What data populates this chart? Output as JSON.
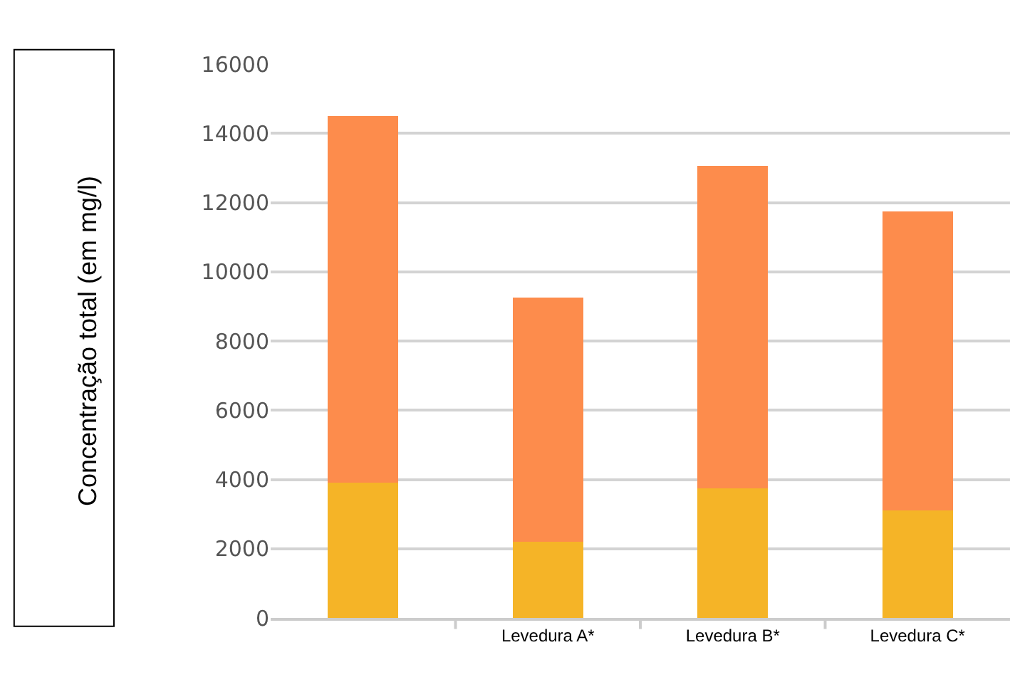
{
  "chart_data": {
    "type": "bar",
    "stacked": true,
    "ylabel": "Concentração total (em mg/l)",
    "categories": [
      null,
      "Levedura A*",
      "Levedura B*",
      "Levedura C*"
    ],
    "series": [
      {
        "color": "#f5b427",
        "values": [
          3900,
          2200,
          3750,
          3100
        ]
      },
      {
        "color": "#fd8c4c",
        "values": [
          10600,
          7050,
          9300,
          8650
        ]
      }
    ],
    "ylim": [
      0,
      16000
    ],
    "yticks": [
      0,
      2000,
      4000,
      6000,
      8000,
      10000,
      12000,
      14000,
      16000
    ],
    "grid": "y"
  }
}
